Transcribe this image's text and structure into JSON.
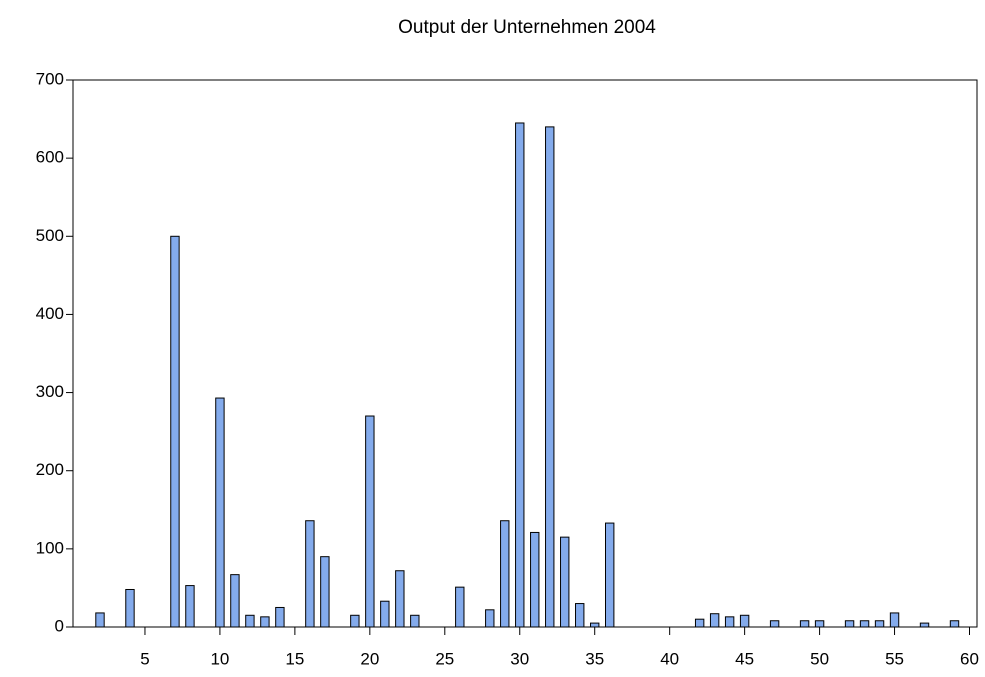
{
  "chart_data": {
    "type": "bar",
    "title": "Output der Unternehmen 2004",
    "x": [
      2,
      4,
      7,
      8,
      10,
      11,
      12,
      13,
      14,
      16,
      17,
      19,
      20,
      21,
      22,
      23,
      26,
      28,
      29,
      30,
      31,
      32,
      33,
      34,
      35,
      36,
      42,
      43,
      44,
      45,
      47,
      49,
      50,
      52,
      53,
      54,
      55,
      57,
      59
    ],
    "values": [
      18,
      48,
      500,
      53,
      293,
      67,
      15,
      13,
      25,
      136,
      90,
      15,
      270,
      33,
      72,
      15,
      51,
      22,
      136,
      645,
      121,
      640,
      115,
      30,
      5,
      133,
      10,
      17,
      13,
      15,
      8,
      8,
      8,
      8,
      8,
      8,
      18,
      5,
      8
    ],
    "color": "#84abec",
    "xlim": [
      0.2,
      60.5
    ],
    "xticks": [
      5,
      10,
      15,
      20,
      25,
      30,
      35,
      40,
      45,
      50,
      55,
      60
    ],
    "ylim": [
      0,
      700
    ],
    "yticks": [
      0,
      100,
      200,
      300,
      400,
      500,
      600,
      700
    ]
  }
}
